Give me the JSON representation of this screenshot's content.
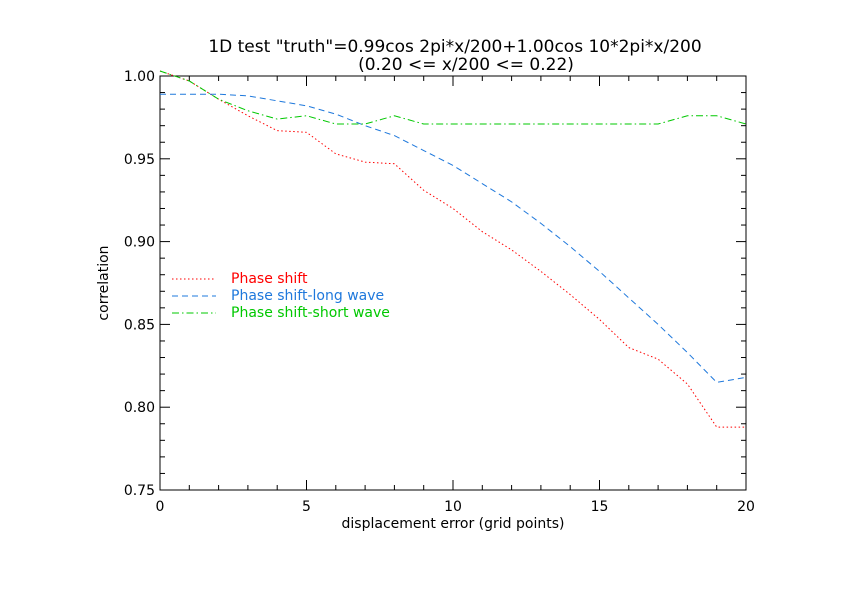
{
  "chart_data": {
    "type": "line",
    "title": "1D test \"truth\"=0.99cos 2pi*x/200+1.00cos 10*2pi*x/200",
    "subtitle": "(0.20 <= x/200 <= 0.22)",
    "xlabel": "displacement error (grid points)",
    "ylabel": "correlation",
    "xlim": [
      0,
      20
    ],
    "ylim": [
      0.75,
      1.0
    ],
    "xticks": [
      0,
      5,
      10,
      15,
      20
    ],
    "xtick_labels": [
      "0",
      "5",
      "10",
      "15",
      "20"
    ],
    "yticks": [
      0.75,
      0.8,
      0.85,
      0.9,
      0.95,
      1.0
    ],
    "ytick_labels": [
      "0.75",
      "0.80",
      "0.85",
      "0.90",
      "0.95",
      "1.00"
    ],
    "x_minor_step": 1,
    "y_minor_step": 0.01,
    "grid": false,
    "legend_position": "middle-left",
    "x": [
      0,
      1,
      2,
      3,
      4,
      5,
      6,
      7,
      8,
      9,
      10,
      11,
      12,
      13,
      14,
      15,
      16,
      17,
      18,
      19,
      20
    ],
    "series": [
      {
        "name": "Phase shift",
        "color": "#ff0000",
        "dash": "dotted",
        "values": [
          1.003,
          0.997,
          0.986,
          0.976,
          0.967,
          0.966,
          0.953,
          0.948,
          0.947,
          0.931,
          0.92,
          0.906,
          0.895,
          0.882,
          0.868,
          0.853,
          0.836,
          0.829,
          0.814,
          0.788,
          0.788
        ]
      },
      {
        "name": "Phase shift-long wave",
        "color": "#1e78dc",
        "dash": "dashed",
        "values": [
          0.989,
          0.989,
          0.989,
          0.988,
          0.985,
          0.982,
          0.977,
          0.97,
          0.964,
          0.955,
          0.946,
          0.935,
          0.924,
          0.911,
          0.897,
          0.882,
          0.866,
          0.85,
          0.833,
          0.815,
          0.818
        ]
      },
      {
        "name": "Phase shift-short wave",
        "color": "#00c800",
        "dash": "dashdot",
        "values": [
          1.003,
          0.997,
          0.986,
          0.979,
          0.974,
          0.976,
          0.971,
          0.971,
          0.976,
          0.971,
          0.971,
          0.971,
          0.971,
          0.971,
          0.971,
          0.971,
          0.971,
          0.971,
          0.976,
          0.976,
          0.971
        ]
      }
    ]
  }
}
